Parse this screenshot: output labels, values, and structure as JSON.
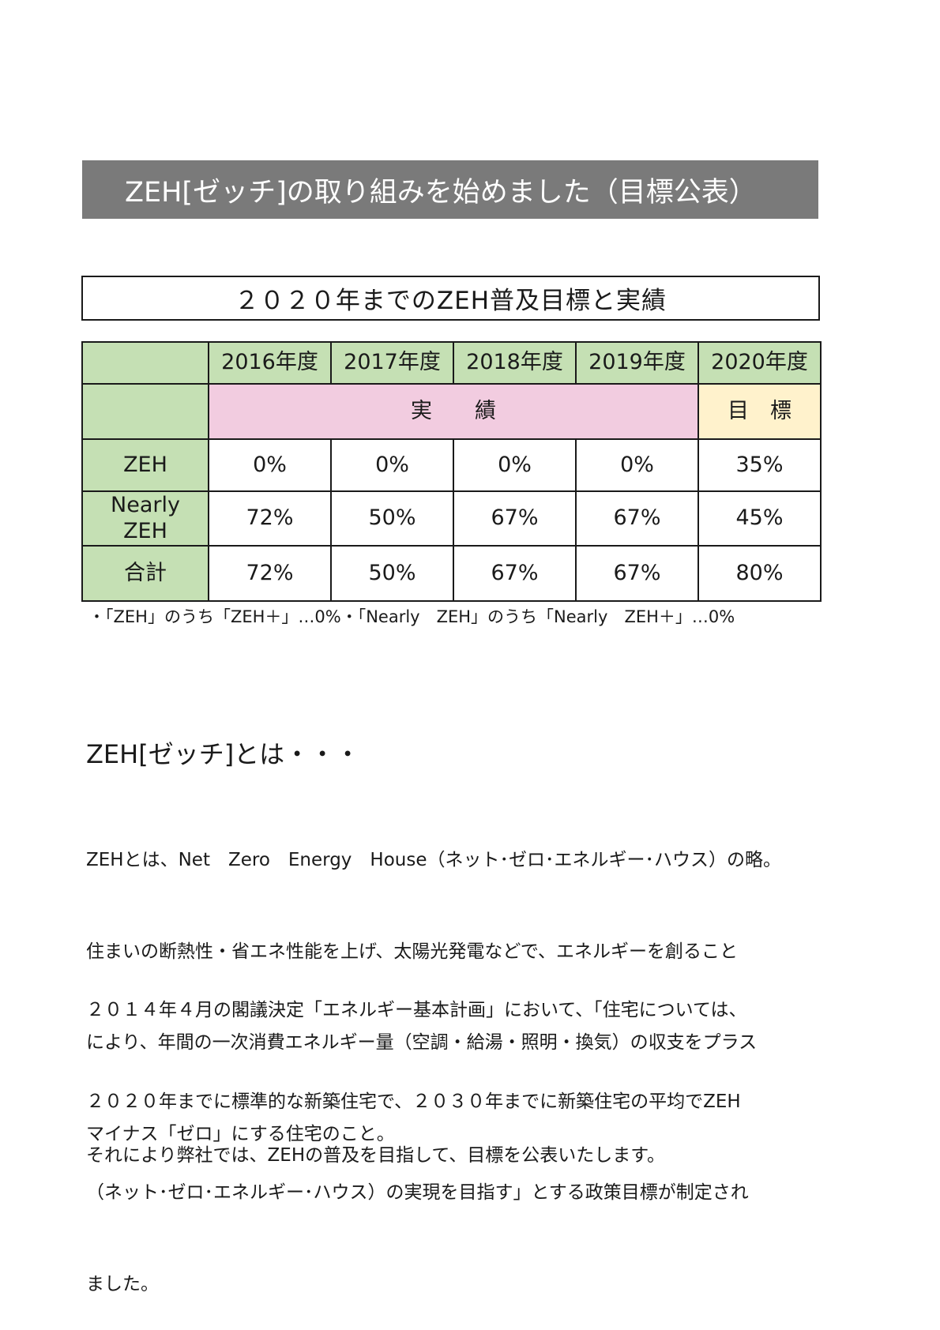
{
  "header": {
    "title": "ZEH[ゼッチ]の取り組みを始めました（目標公表）"
  },
  "targets_table": {
    "title": "２０２０年までのZEH普及目標と実績",
    "years": [
      "2016年度",
      "2017年度",
      "2018年度",
      "2019年度",
      "2020年度"
    ],
    "actual_label": "実　　績",
    "target_label": "目　標",
    "rows": [
      {
        "label": "ZEH",
        "values": [
          "0%",
          "0%",
          "0%",
          "0%",
          "35%"
        ]
      },
      {
        "label_line1": "Nearly",
        "label_line2": "ZEH",
        "values": [
          "72%",
          "50%",
          "67%",
          "67%",
          "45%"
        ]
      },
      {
        "label": "合計",
        "values": [
          "72%",
          "50%",
          "67%",
          "67%",
          "80%"
        ]
      }
    ],
    "footnote": "・「ZEH」のうち「ZEH＋」…0%・「Nearly　ZEH」のうち「Nearly　ZEH＋」…0%"
  },
  "about": {
    "heading": "ZEH[ゼッチ]とは・・・",
    "paragraph1": [
      "ZEHとは、Net　Zero　Energy　House（ネット･ゼロ･エネルギー･ハウス）の略。",
      "住まいの断熱性・省エネ性能を上げ、太陽光発電などで、エネルギーを創ること",
      "により、年間の一次消費エネルギー量（空調・給湯・照明・換気）の収支をプラス",
      "マイナス「ゼロ」にする住宅のこと。"
    ],
    "paragraph2": [
      "２０１４年４月の閣議決定「エネルギー基本計画」において、「住宅については、",
      "２０２０年までに標準的な新築住宅で、２０３０年までに新築住宅の平均でZEH",
      "（ネット･ゼロ･エネルギー･ハウス）の実現を目指す」とする政策目標が制定され",
      "ました。"
    ],
    "paragraph3": "それにより弊社では、ZEHの普及を目指して、目標を公表いたします。"
  }
}
